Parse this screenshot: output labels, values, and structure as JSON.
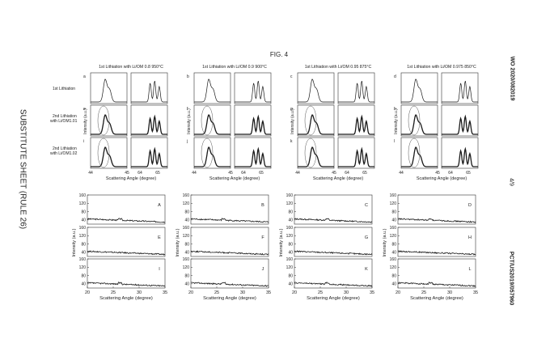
{
  "figure_title": "FIG. 4",
  "side_left": "SUBSTITUTE SHEET (RULE 26)",
  "side_right_top": "WO 2020/082019",
  "side_right_mid": "4/9",
  "side_right_bottom": "PCT/US2019/057960",
  "row_labels": [
    {
      "line1": "1st Lithiation",
      "line2": ""
    },
    {
      "line1": "2nd Lithiation",
      "line2": "with Li/OM1.01"
    },
    {
      "line1": "2nd Lithiation",
      "line2": "with Li/OM1.02"
    }
  ],
  "colors": {
    "line": "#1a1a1a",
    "frame": "#333333",
    "ellipse": "#555555",
    "background": "#ffffff"
  },
  "chart_data": [
    {
      "type": "line",
      "group": "xrd_closeups",
      "columns": [
        {
          "title": "1st Lithiation with Li/OM 0.8 950°C",
          "letters": [
            "a",
            "e",
            "i"
          ]
        },
        {
          "title": "1st Lithiation with Li/OM 0.9 900°C",
          "letters": [
            "b",
            "f",
            "j"
          ]
        },
        {
          "title": "1st Lithiation with Li/OM 0.95 875°C",
          "letters": [
            "c",
            "g",
            "k"
          ]
        },
        {
          "title": "1st Lithiation with Li/OM 0.975 850°C",
          "letters": [
            "d",
            "h",
            "l"
          ]
        }
      ],
      "left_panel_xlim": [
        44,
        45
      ],
      "right_panel_xlim": [
        63.5,
        65.5
      ],
      "left_panel_ticks": [
        "44",
        "45"
      ],
      "right_panel_ticks": [
        "64",
        "65"
      ],
      "ylabel": "Intensity (a.u.)",
      "xlabel": "Scattering Angle (degree)",
      "peaks": {
        "left": [
          {
            "center": 44.4,
            "height": 1.0,
            "width": 0.07
          },
          {
            "center": 44.52,
            "height": 0.55,
            "width": 0.07
          }
        ],
        "right": [
          {
            "center": 64.55,
            "height": 0.85,
            "width": 0.08
          },
          {
            "center": 64.8,
            "height": 0.95,
            "width": 0.08
          },
          {
            "center": 65.05,
            "height": 0.7,
            "width": 0.08
          }
        ]
      }
    },
    {
      "type": "line",
      "group": "xrd_wide",
      "panels": [
        [
          "A",
          "B",
          "C",
          "D"
        ],
        [
          "E",
          "F",
          "G",
          "H"
        ],
        [
          "I",
          "J",
          "K",
          "L"
        ]
      ],
      "xlim": [
        20,
        35
      ],
      "ylim": [
        20,
        160
      ],
      "xticks": [
        "20",
        "25",
        "30",
        "35"
      ],
      "yticks": [
        "40",
        "80",
        "120",
        "160"
      ],
      "ylabel": "Intensity (a.u.)",
      "xlabel": "Scattering Angle (degree)",
      "baseline": {
        "start": 45,
        "end": 30,
        "noise": 6
      }
    }
  ]
}
